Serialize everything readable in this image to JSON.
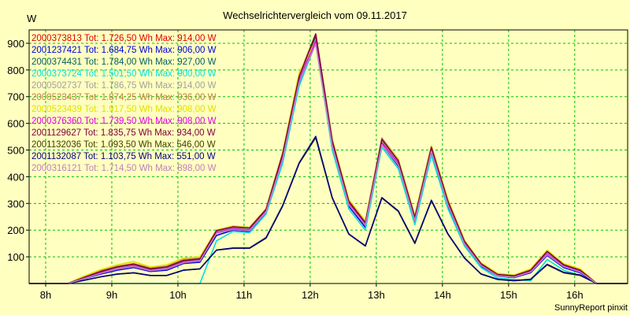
{
  "chart_data": {
    "type": "line",
    "title": "Wechselrichtervergleich vom 09.11.2017",
    "ylabel": "W",
    "footer": "SunnyReport pinxit",
    "ylim": [
      0,
      950
    ],
    "xlim": [
      7.75,
      16.8
    ],
    "yticks": [
      100,
      200,
      300,
      400,
      500,
      600,
      700,
      800,
      900
    ],
    "xticks": [
      {
        "value": 8,
        "label": "8h"
      },
      {
        "value": 9,
        "label": "9h"
      },
      {
        "value": 10,
        "label": "10h"
      },
      {
        "value": 11,
        "label": "11h"
      },
      {
        "value": 12,
        "label": "12h"
      },
      {
        "value": 13,
        "label": "13h"
      },
      {
        "value": 14,
        "label": "14h"
      },
      {
        "value": 15,
        "label": "15h"
      },
      {
        "value": 16,
        "label": "16h"
      }
    ],
    "grid": true,
    "legend_position": "top-left",
    "x": [
      7.75,
      8.083,
      8.333,
      8.583,
      8.833,
      9.083,
      9.333,
      9.583,
      9.833,
      10.083,
      10.333,
      10.583,
      10.833,
      11.083,
      11.333,
      11.583,
      11.833,
      12.083,
      12.333,
      12.583,
      12.833,
      13.083,
      13.333,
      13.583,
      13.833,
      14.083,
      14.333,
      14.583,
      14.833,
      15.083,
      15.333,
      15.583,
      15.833,
      16.083,
      16.333,
      16.583,
      16.8
    ],
    "series": [
      {
        "name": "2000373813 Tot: 1.726,50 Wh Max: 914,00 W",
        "color": "#e00000",
        "values": [
          0,
          0,
          0,
          20,
          40,
          55,
          65,
          50,
          55,
          80,
          85,
          190,
          205,
          200,
          270,
          470,
          760,
          914,
          520,
          300,
          220,
          530,
          450,
          240,
          500,
          300,
          150,
          70,
          30,
          25,
          45,
          110,
          65,
          45,
          0,
          0,
          0
        ]
      },
      {
        "name": "2001237421 Tot: 1.684,75 Wh Max: 906,00 W",
        "color": "#0000e0",
        "values": [
          0,
          0,
          0,
          18,
          35,
          50,
          60,
          45,
          50,
          75,
          80,
          180,
          200,
          195,
          265,
          460,
          750,
          906,
          510,
          290,
          210,
          520,
          440,
          230,
          490,
          290,
          145,
          65,
          28,
          22,
          40,
          105,
          60,
          40,
          0,
          0,
          0
        ]
      },
      {
        "name": "2000374431 Tot: 1.784,00 Wh Max: 927,00 W",
        "color": "#006060",
        "values": [
          0,
          0,
          0,
          22,
          42,
          58,
          68,
          52,
          58,
          82,
          88,
          195,
          210,
          205,
          275,
          480,
          770,
          927,
          530,
          305,
          225,
          535,
          455,
          245,
          505,
          305,
          155,
          72,
          32,
          27,
          48,
          115,
          68,
          48,
          0,
          0,
          0
        ]
      },
      {
        "name": "2000373724 Tot: 1.501,50 Wh Max: 900,00 W",
        "color": "#00e0e0",
        "values": [
          0,
          0,
          0,
          0,
          0,
          0,
          0,
          0,
          0,
          0,
          0,
          160,
          195,
          190,
          260,
          450,
          740,
          900,
          500,
          280,
          200,
          510,
          430,
          220,
          480,
          280,
          140,
          60,
          20,
          15,
          10,
          90,
          50,
          30,
          0,
          0,
          0
        ]
      },
      {
        "name": "2000502737 Tot: 1.786,75 Wh Max: 914,00 W",
        "color": "#a0a0a0",
        "values": [
          0,
          0,
          0,
          22,
          43,
          58,
          68,
          52,
          58,
          82,
          88,
          195,
          210,
          205,
          275,
          480,
          770,
          914,
          530,
          305,
          225,
          535,
          455,
          245,
          505,
          305,
          155,
          72,
          32,
          27,
          48,
          115,
          68,
          48,
          0,
          0,
          0
        ]
      },
      {
        "name": "2000523437 Tot: 1.874,25 Wh Max: 936,00 W",
        "color": "#c08040",
        "values": [
          0,
          0,
          0,
          25,
          48,
          65,
          75,
          58,
          65,
          90,
          95,
          200,
          215,
          210,
          280,
          490,
          780,
          936,
          540,
          310,
          230,
          545,
          465,
          250,
          515,
          310,
          160,
          75,
          35,
          30,
          52,
          122,
          72,
          52,
          0,
          0,
          0
        ]
      },
      {
        "name": "2000523439 Tot: 1.917,50 Wh Max: 908,00 W",
        "color": "#e0e000",
        "values": [
          0,
          0,
          0,
          28,
          52,
          70,
          82,
          62,
          70,
          95,
          100,
          200,
          215,
          210,
          280,
          490,
          790,
          908,
          540,
          315,
          235,
          540,
          465,
          255,
          515,
          315,
          162,
          78,
          38,
          32,
          55,
          125,
          75,
          55,
          0,
          0,
          0
        ]
      },
      {
        "name": "2000376360 Tot: 1.739,50 Wh Max: 908,00 W",
        "color": "#e000e0",
        "values": [
          0,
          0,
          0,
          20,
          40,
          55,
          65,
          50,
          55,
          80,
          85,
          190,
          205,
          200,
          270,
          470,
          760,
          908,
          520,
          300,
          220,
          525,
          450,
          240,
          500,
          300,
          150,
          70,
          30,
          25,
          45,
          110,
          65,
          45,
          0,
          0,
          0
        ]
      },
      {
        "name": "2001129627 Tot: 1.835,75 Wh Max: 934,00 W",
        "color": "#800040",
        "values": [
          0,
          0,
          0,
          23,
          45,
          62,
          72,
          55,
          62,
          86,
          92,
          198,
          212,
          208,
          278,
          485,
          775,
          934,
          535,
          308,
          228,
          540,
          460,
          248,
          510,
          308,
          158,
          74,
          34,
          29,
          50,
          120,
          70,
          50,
          0,
          0,
          0
        ]
      },
      {
        "name": "2001132036 Tot: 1.093,50 Wh Max: 546,00 W",
        "color": "#404000",
        "values": [
          0,
          0,
          0,
          12,
          25,
          35,
          40,
          30,
          30,
          50,
          55,
          125,
          132,
          132,
          170,
          290,
          450,
          546,
          320,
          185,
          140,
          320,
          270,
          150,
          310,
          185,
          95,
          35,
          15,
          10,
          15,
          70,
          40,
          30,
          0,
          0,
          0
        ]
      },
      {
        "name": "2001132087 Tot: 1.103,75 Wh Max: 551,00 W",
        "color": "#000080",
        "values": [
          0,
          0,
          0,
          12,
          25,
          35,
          40,
          30,
          30,
          50,
          55,
          125,
          133,
          133,
          172,
          292,
          452,
          551,
          322,
          186,
          141,
          322,
          272,
          152,
          312,
          186,
          96,
          36,
          16,
          11,
          16,
          72,
          42,
          32,
          0,
          0,
          0
        ]
      },
      {
        "name": "2000316121 Tot: 1.714,50 Wh Max: 898,00 W",
        "color": "#c080c0",
        "values": [
          0,
          0,
          0,
          19,
          38,
          54,
          63,
          48,
          54,
          78,
          84,
          188,
          202,
          198,
          268,
          465,
          755,
          898,
          515,
          295,
          218,
          520,
          445,
          235,
          495,
          295,
          148,
          68,
          29,
          24,
          43,
          108,
          63,
          43,
          0,
          0,
          0
        ]
      }
    ]
  }
}
